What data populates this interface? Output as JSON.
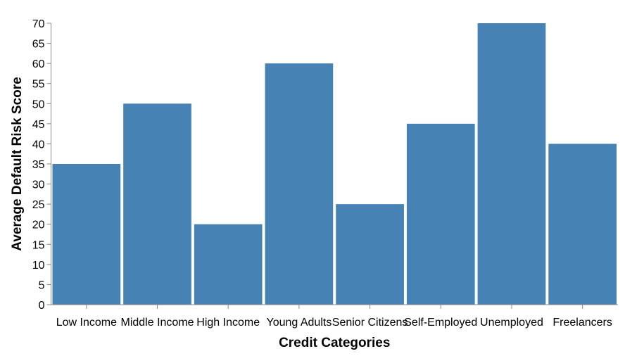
{
  "chart_data": {
    "type": "bar",
    "categories": [
      "Low Income",
      "Middle Income",
      "High Income",
      "Young Adults",
      "Senior Citizens",
      "Self-Employed",
      "Unemployed",
      "Freelancers"
    ],
    "values": [
      35,
      50,
      20,
      60,
      25,
      45,
      70,
      40
    ],
    "xlabel": "Credit Categories",
    "ylabel": "Average Default Risk Score",
    "ylim": [
      0,
      70
    ],
    "yticks": [
      0,
      5,
      10,
      15,
      20,
      25,
      30,
      35,
      40,
      45,
      50,
      55,
      60,
      65,
      70
    ],
    "bar_color": "#4682b4",
    "grid": false,
    "legend": "none"
  }
}
